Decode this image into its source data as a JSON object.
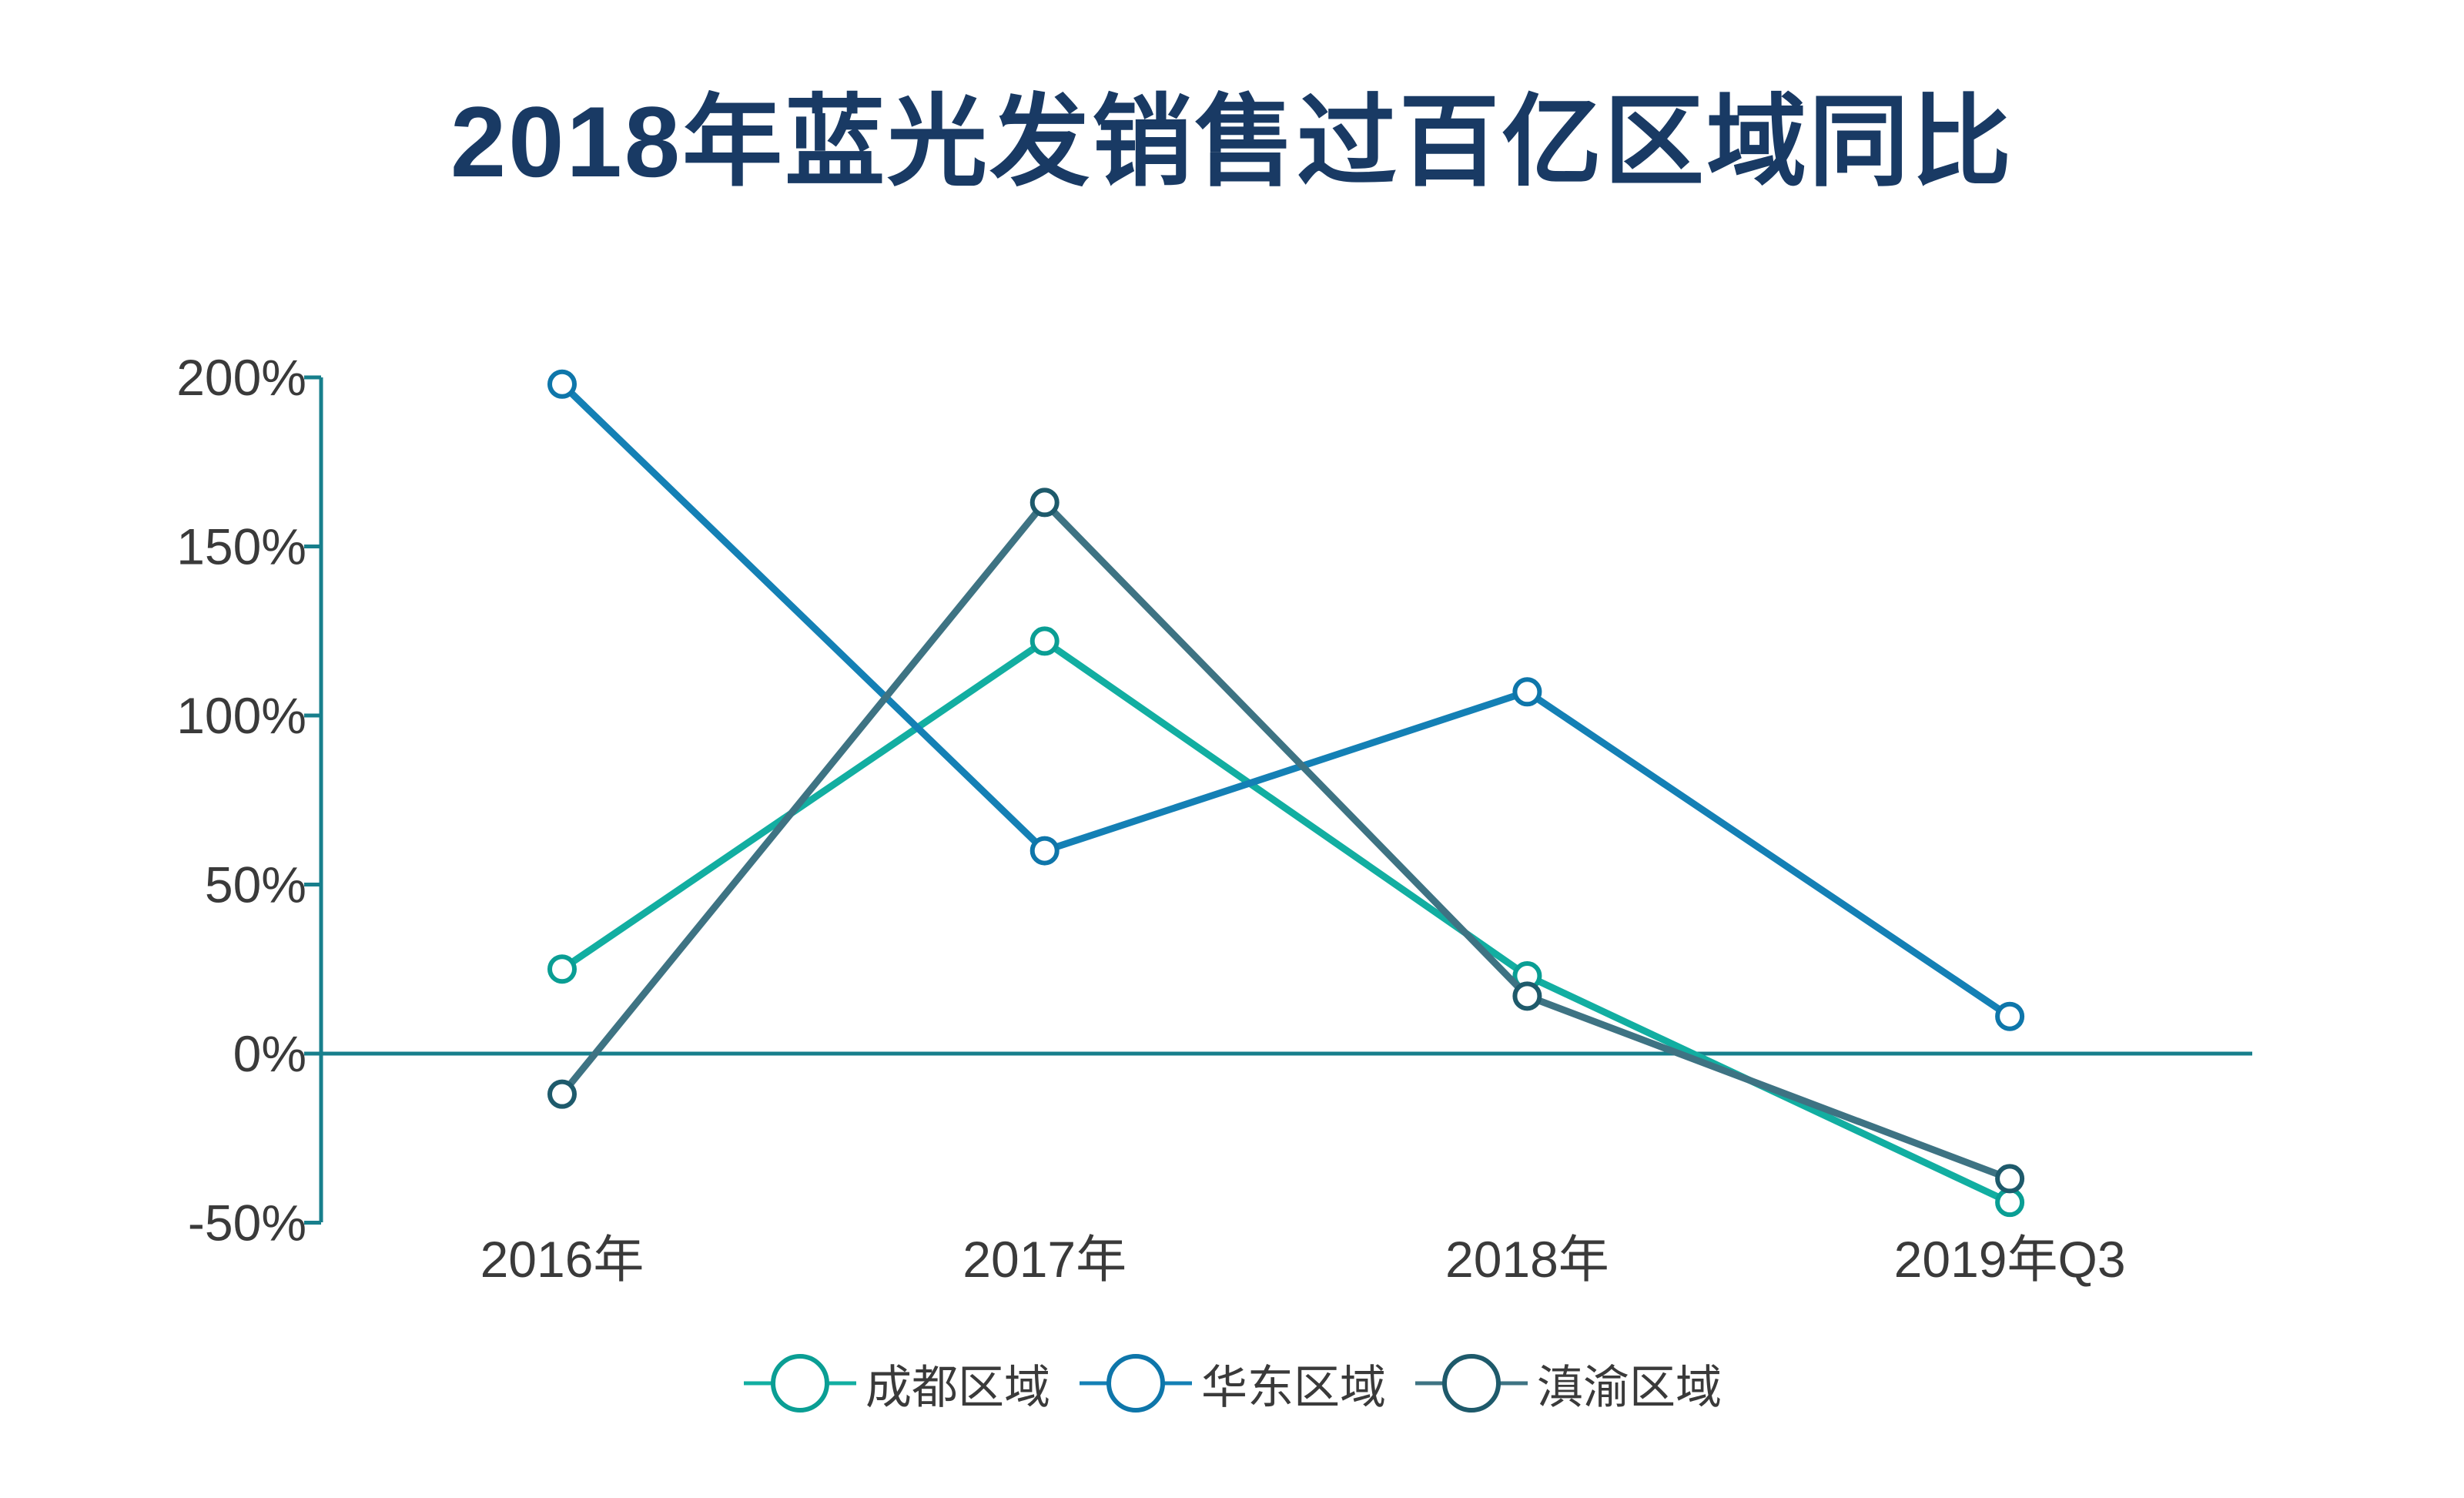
{
  "title": "2018年蓝光发销售过百亿区域同比",
  "colors": {
    "title": "#193A64",
    "axis": "#177F8C",
    "label": "#3A3A3A",
    "background": "#FFFFFF"
  },
  "chart_data": {
    "type": "line",
    "title": "2018年蓝光发销售过百亿区域同比",
    "categories": [
      "2016年",
      "2017年",
      "2018年",
      "2019年Q3"
    ],
    "series": [
      {
        "name": "成都区域",
        "values": [
          25,
          122,
          23,
          -44
        ],
        "line_color": "#12AEA1",
        "marker_color": "#0A9E94"
      },
      {
        "name": "华东区域",
        "values": [
          198,
          60,
          107,
          11
        ],
        "line_color": "#1480B5",
        "marker_color": "#0E76AA"
      },
      {
        "name": "滇渝区域",
        "values": [
          -12,
          163,
          17,
          -37
        ],
        "line_color": "#3E7383",
        "marker_color": "#1E5A6B"
      }
    ],
    "ylim": [
      -50,
      200
    ],
    "yticks": [
      200,
      150,
      100,
      50,
      0,
      -50
    ],
    "ytick_suffix": "%",
    "xlabel": "",
    "ylabel": "",
    "grid": false,
    "zero_line": true,
    "legend_position": "bottom",
    "marker_style": "hollow-circle"
  }
}
